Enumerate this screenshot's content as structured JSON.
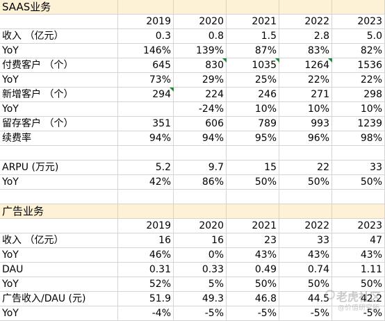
{
  "sheet": {
    "rows": [
      {
        "kind": "section",
        "cells": [
          "SAAS业务",
          "",
          "",
          "",
          "",
          ""
        ]
      },
      {
        "kind": "header",
        "cells": [
          "",
          "2019",
          "2020",
          "2021",
          "2022",
          "2023"
        ]
      },
      {
        "kind": "data",
        "cells": [
          "收入 （亿元）",
          "0.3",
          "0.8",
          "1.5",
          "2.8",
          "5.0"
        ]
      },
      {
        "kind": "data",
        "cells": [
          "YoY",
          "146%",
          "139%",
          "87%",
          "83%",
          "82%"
        ]
      },
      {
        "kind": "data",
        "cells": [
          "付费客户 （个）",
          "645",
          "830",
          "1035",
          "1264",
          "1536"
        ],
        "markers": [
          2,
          3,
          4
        ]
      },
      {
        "kind": "data",
        "cells": [
          "YoY",
          "73%",
          "29%",
          "25%",
          "22%",
          "22%"
        ]
      },
      {
        "kind": "data",
        "cells": [
          "新增客户 （个）",
          "294",
          "224",
          "246",
          "271",
          "298"
        ],
        "markers": [
          1
        ]
      },
      {
        "kind": "data",
        "cells": [
          "YoY",
          "",
          "-24%",
          "10%",
          "10%",
          "10%"
        ]
      },
      {
        "kind": "data",
        "cells": [
          "留存客户 （个）",
          "351",
          "606",
          "789",
          "993",
          "1239"
        ]
      },
      {
        "kind": "data",
        "cells": [
          "续费率",
          "94%",
          "94%",
          "95%",
          "96%",
          "98%"
        ]
      },
      {
        "kind": "blank",
        "cells": [
          "",
          "",
          "",
          "",
          "",
          ""
        ]
      },
      {
        "kind": "data",
        "cells": [
          "ARPU (万元)",
          "5.2",
          "9.7",
          "15",
          "22",
          "33"
        ]
      },
      {
        "kind": "data",
        "cells": [
          "YoY",
          "42%",
          "86%",
          "50%",
          "50%",
          "50%"
        ]
      },
      {
        "kind": "blank",
        "cells": [
          "",
          "",
          "",
          "",
          "",
          ""
        ]
      },
      {
        "kind": "section",
        "cells": [
          "广告业务",
          "",
          "",
          "",
          "",
          ""
        ]
      },
      {
        "kind": "header",
        "cells": [
          "",
          "2019",
          "2020",
          "2021",
          "2022",
          "2023"
        ]
      },
      {
        "kind": "data",
        "cells": [
          "收入 （亿元）",
          "16",
          "16",
          "23",
          "33",
          "47"
        ]
      },
      {
        "kind": "data",
        "cells": [
          "YoY",
          "46%",
          "0%",
          "43%",
          "43%",
          "43%"
        ]
      },
      {
        "kind": "data",
        "cells": [
          "DAU",
          "0.31",
          "0.33",
          "0.49",
          "0.74",
          "1.11"
        ]
      },
      {
        "kind": "data",
        "cells": [
          "YoY",
          "52%",
          "5%",
          "50%",
          "50%",
          "50%"
        ]
      },
      {
        "kind": "data",
        "cells": [
          "广告收入/DAU (元)",
          "51.9",
          "49.3",
          "46.8",
          "44.5",
          "42.2"
        ]
      },
      {
        "kind": "data",
        "cells": [
          "YoY",
          "-4%",
          "-5%",
          "-5%",
          "-5%",
          "-5%"
        ]
      }
    ]
  },
  "watermark": {
    "line1": "老虎社区",
    "line2": "@价值研究所"
  },
  "colors": {
    "section_fill": "#fdf1d6",
    "gridline": "#d4d4d4",
    "comment_marker": "#1f8a3a"
  }
}
